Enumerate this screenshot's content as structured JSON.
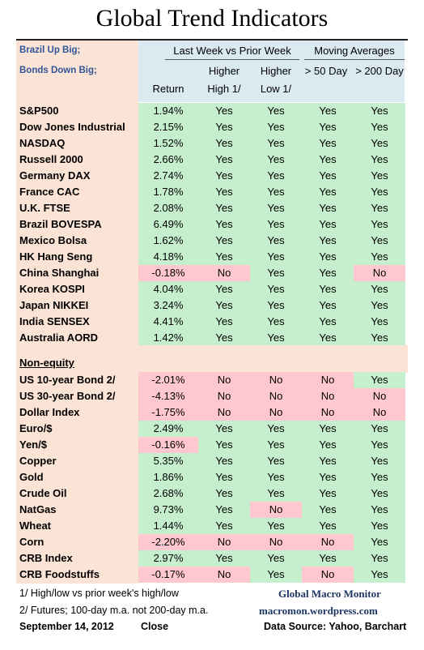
{
  "title": "Global Trend Indicators",
  "header": {
    "note1": "Brazil Up Big;",
    "note2": "Bonds Down Big;",
    "group1": "Last Week vs Prior Week",
    "group2": "Moving Averages",
    "col_return": "Return",
    "col_high_top": "Higher",
    "col_high_bot": "High 1/",
    "col_low_top": "Higher",
    "col_low_bot": "Low 1/",
    "col_50": "> 50 Day",
    "col_200": "> 200 Day"
  },
  "colors": {
    "green": "#c6efce",
    "red": "#ffc7ce",
    "peach": "#fbe3d6",
    "blue": "#dbe9f1"
  },
  "equities": [
    {
      "name": "S&P500",
      "ret": "1.94%",
      "high": "Yes",
      "low": "Yes",
      "d50": "Yes",
      "d200": "Yes"
    },
    {
      "name": "Dow Jones Industrial",
      "ret": "2.15%",
      "high": "Yes",
      "low": "Yes",
      "d50": "Yes",
      "d200": "Yes"
    },
    {
      "name": "NASDAQ",
      "ret": "1.52%",
      "high": "Yes",
      "low": "Yes",
      "d50": "Yes",
      "d200": "Yes"
    },
    {
      "name": "Russell 2000",
      "ret": "2.66%",
      "high": "Yes",
      "low": "Yes",
      "d50": "Yes",
      "d200": "Yes"
    },
    {
      "name": "Germany DAX",
      "ret": "2.74%",
      "high": "Yes",
      "low": "Yes",
      "d50": "Yes",
      "d200": "Yes"
    },
    {
      "name": "France CAC",
      "ret": "1.78%",
      "high": "Yes",
      "low": "Yes",
      "d50": "Yes",
      "d200": "Yes"
    },
    {
      "name": "U.K. FTSE",
      "ret": "2.08%",
      "high": "Yes",
      "low": "Yes",
      "d50": "Yes",
      "d200": "Yes"
    },
    {
      "name": "Brazil BOVESPA",
      "ret": "6.49%",
      "high": "Yes",
      "low": "Yes",
      "d50": "Yes",
      "d200": "Yes"
    },
    {
      "name": "Mexico Bolsa",
      "ret": "1.62%",
      "high": "Yes",
      "low": "Yes",
      "d50": "Yes",
      "d200": "Yes"
    },
    {
      "name": "HK  Hang Seng",
      "ret": "4.18%",
      "high": "Yes",
      "low": "Yes",
      "d50": "Yes",
      "d200": "Yes"
    },
    {
      "name": "China Shanghai",
      "ret": "-0.18%",
      "high": "No",
      "low": "Yes",
      "d50": "Yes",
      "d200": "No"
    },
    {
      "name": "Korea KOSPI",
      "ret": "4.04%",
      "high": "Yes",
      "low": "Yes",
      "d50": "Yes",
      "d200": "Yes"
    },
    {
      "name": "Japan NIKKEI",
      "ret": "3.24%",
      "high": "Yes",
      "low": "Yes",
      "d50": "Yes",
      "d200": "Yes"
    },
    {
      "name": "India SENSEX",
      "ret": "4.41%",
      "high": "Yes",
      "low": "Yes",
      "d50": "Yes",
      "d200": "Yes"
    },
    {
      "name": "Australia AORD",
      "ret": "1.42%",
      "high": "Yes",
      "low": "Yes",
      "d50": "Yes",
      "d200": "Yes"
    }
  ],
  "section_label": "Non-equity",
  "nonequity": [
    {
      "name": "US 10-year Bond 2/",
      "ret": "-2.01%",
      "high": "No",
      "low": "No",
      "d50": "No",
      "d200": "Yes"
    },
    {
      "name": "US 30-year Bond 2/",
      "ret": "-4.13%",
      "high": "No",
      "low": "No",
      "d50": "No",
      "d200": "No"
    },
    {
      "name": "Dollar Index",
      "ret": "-1.75%",
      "high": "No",
      "low": "No",
      "d50": "No",
      "d200": "No"
    },
    {
      "name": "Euro/$",
      "ret": "2.49%",
      "high": "Yes",
      "low": "Yes",
      "d50": "Yes",
      "d200": "Yes"
    },
    {
      "name": "Yen/$",
      "ret": "-0.16%",
      "high": "Yes",
      "low": "Yes",
      "d50": "Yes",
      "d200": "Yes"
    },
    {
      "name": "Copper",
      "ret": "5.35%",
      "high": "Yes",
      "low": "Yes",
      "d50": "Yes",
      "d200": "Yes"
    },
    {
      "name": "Gold",
      "ret": "1.86%",
      "high": "Yes",
      "low": "Yes",
      "d50": "Yes",
      "d200": "Yes"
    },
    {
      "name": "Crude Oil",
      "ret": "2.68%",
      "high": "Yes",
      "low": "Yes",
      "d50": "Yes",
      "d200": "Yes"
    },
    {
      "name": "NatGas",
      "ret": "9.73%",
      "high": "Yes",
      "low": "No",
      "d50": "Yes",
      "d200": "Yes"
    },
    {
      "name": "Wheat",
      "ret": "1.44%",
      "high": "Yes",
      "low": "Yes",
      "d50": "Yes",
      "d200": "Yes"
    },
    {
      "name": "Corn",
      "ret": "-2.20%",
      "high": "No",
      "low": "No",
      "d50": "No",
      "d200": "Yes"
    },
    {
      "name": "CRB Index",
      "ret": "2.97%",
      "high": "Yes",
      "low": "Yes",
      "d50": "Yes",
      "d200": "Yes"
    },
    {
      "name": "CRB Foodstuffs",
      "ret": "-0.17%",
      "high": "No",
      "low": "Yes",
      "d50": "No",
      "d200": "Yes"
    }
  ],
  "footer": {
    "note1": "1/  High/low vs prior week's high/low",
    "note2": "2/  Futures;  100-day m.a. not 200-day m.a.",
    "date": "September 14, 2012",
    "close": "Close",
    "brand": "Global Macro Monitor",
    "site": "macromon.wordpress.com",
    "source": "Data Source: Yahoo, Barchart"
  }
}
